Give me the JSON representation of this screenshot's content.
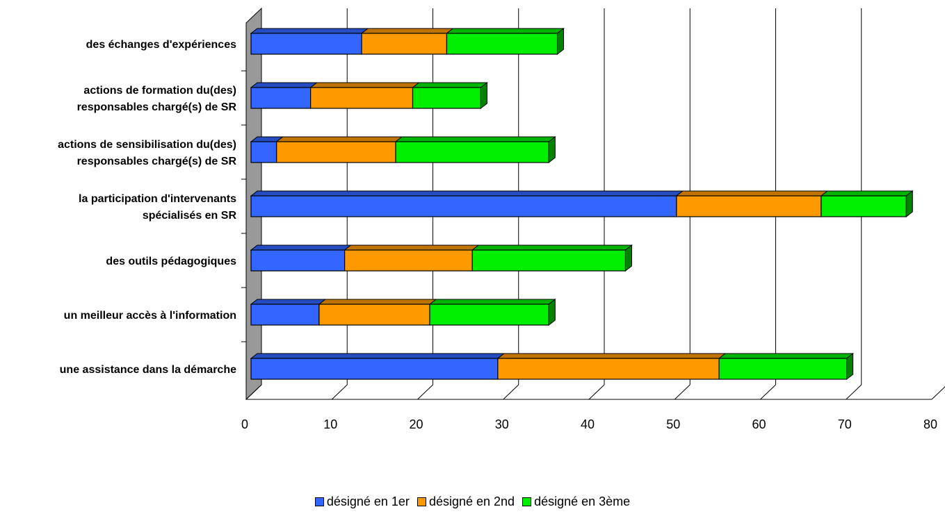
{
  "chart_data": {
    "type": "bar",
    "orientation": "horizontal",
    "stacked": true,
    "three_d": true,
    "categories": [
      [
        "des échanges d'expériences"
      ],
      [
        "actions de formation  du(des)",
        "responsables chargé(s) de SR"
      ],
      [
        "actions de sensibilisation  du(des)",
        "responsables chargé(s) de SR"
      ],
      [
        "la participation d'intervenants",
        "spécialisés en SR"
      ],
      [
        "des outils pédagogiques"
      ],
      [
        "un meilleur accès à l'information"
      ],
      [
        "une assistance dans la démarche"
      ]
    ],
    "series": [
      {
        "name": "désigné en 1er",
        "color": "#3366ff",
        "values": [
          13,
          7,
          3,
          50,
          11,
          8,
          29
        ]
      },
      {
        "name": "désigné en 2nd",
        "color": "#ff9900",
        "values": [
          10,
          12,
          14,
          17,
          15,
          13,
          26
        ]
      },
      {
        "name": "désigné en 3ème",
        "color": "#00ee00",
        "values": [
          13,
          8,
          18,
          10,
          18,
          14,
          15
        ]
      }
    ],
    "xlim": [
      0,
      80
    ],
    "x_ticks": [
      "0",
      "10",
      "20",
      "30",
      "40",
      "50",
      "60",
      "70",
      "80"
    ],
    "grid": "vertical",
    "legend": "bottom-center"
  }
}
